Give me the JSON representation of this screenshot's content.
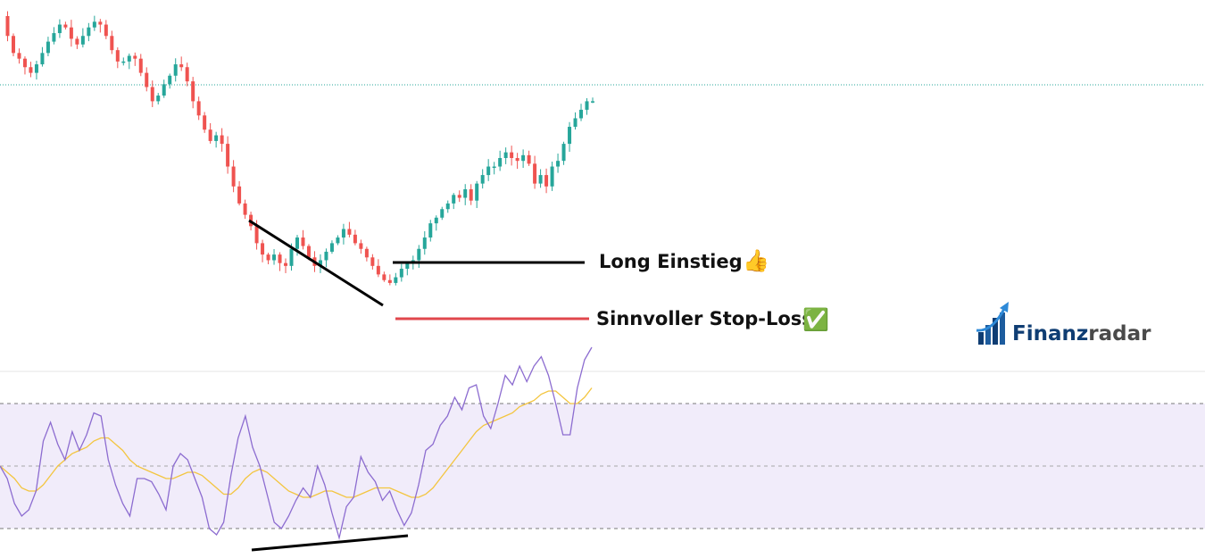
{
  "chart_data": [
    {
      "type": "candlestick",
      "title": "",
      "xlabel": "",
      "ylabel": "",
      "grid": false,
      "colors": {
        "up": "#26a69a",
        "down": "#ef5350",
        "last_price_line": "#26a69a"
      },
      "series": [
        {
          "name": "",
          "kind": "close",
          "values": [
            100,
            93,
            87,
            85,
            82,
            80,
            83,
            87,
            91,
            94,
            97,
            96,
            92,
            90,
            93,
            96,
            98,
            97,
            93,
            88,
            84,
            84,
            86,
            85,
            80,
            75,
            70,
            72,
            76,
            79,
            83,
            82,
            77,
            70,
            65,
            60,
            56,
            58,
            55,
            47,
            40,
            34,
            30,
            26,
            20,
            16,
            14,
            16,
            13,
            12,
            18,
            22,
            19,
            15,
            12,
            14,
            17,
            20,
            22,
            25,
            23,
            20,
            18,
            15,
            12,
            9,
            7,
            6,
            8,
            11,
            13,
            14,
            18,
            22,
            27,
            29,
            32,
            34,
            37,
            36,
            39,
            35,
            41,
            44,
            47,
            47,
            50,
            52,
            50,
            49,
            51,
            48,
            41,
            44,
            40,
            47,
            49,
            55,
            61,
            64,
            67,
            70,
            70
          ]
        }
      ],
      "annotations": [
        "Long Einstieg",
        "Sinnvoller Stop-Loss"
      ],
      "annotation_emoji": [
        "👍",
        "✅"
      ]
    },
    {
      "type": "line",
      "title": "",
      "xlabel": "",
      "ylabel": "",
      "ylim": [
        0,
        100
      ],
      "bands": [
        30,
        50,
        70
      ],
      "band_fill": "#f1ecfa",
      "series": [
        {
          "name": "",
          "color": "#8c6cd0",
          "values": [
            50,
            46,
            38,
            34,
            36,
            42,
            58,
            64,
            57,
            52,
            61,
            55,
            60,
            67,
            66,
            52,
            44,
            38,
            34,
            46,
            46,
            45,
            41,
            36,
            50,
            54,
            52,
            46,
            40,
            30,
            28,
            32,
            47,
            59,
            66,
            56,
            50,
            41,
            32,
            30,
            34,
            39,
            43,
            40,
            50,
            44,
            35,
            27,
            37,
            40,
            53,
            48,
            45,
            39,
            42,
            36,
            31,
            35,
            44,
            55,
            57,
            63,
            66,
            72,
            68,
            75,
            76,
            66,
            62,
            70,
            79,
            76,
            82,
            77,
            82,
            85,
            79,
            70,
            60,
            60,
            75,
            84,
            88
          ]
        },
        {
          "name": "",
          "color": "#f3c53f",
          "values": [
            50,
            48,
            46,
            43,
            42,
            42,
            44,
            47,
            50,
            52,
            54,
            55,
            56,
            58,
            59,
            59,
            57,
            55,
            52,
            50,
            49,
            48,
            47,
            46,
            46,
            47,
            48,
            48,
            47,
            45,
            43,
            41,
            41,
            43,
            46,
            48,
            49,
            48,
            46,
            44,
            42,
            41,
            40,
            40,
            41,
            42,
            42,
            41,
            40,
            40,
            41,
            42,
            43,
            43,
            43,
            42,
            41,
            40,
            40,
            41,
            43,
            46,
            49,
            52,
            55,
            58,
            61,
            63,
            64,
            65,
            66,
            67,
            69,
            70,
            71,
            73,
            74,
            74,
            72,
            70,
            70,
            72,
            75
          ]
        }
      ]
    }
  ],
  "logo": {
    "brand_a": "Finanz",
    "brand_b": "radar"
  }
}
